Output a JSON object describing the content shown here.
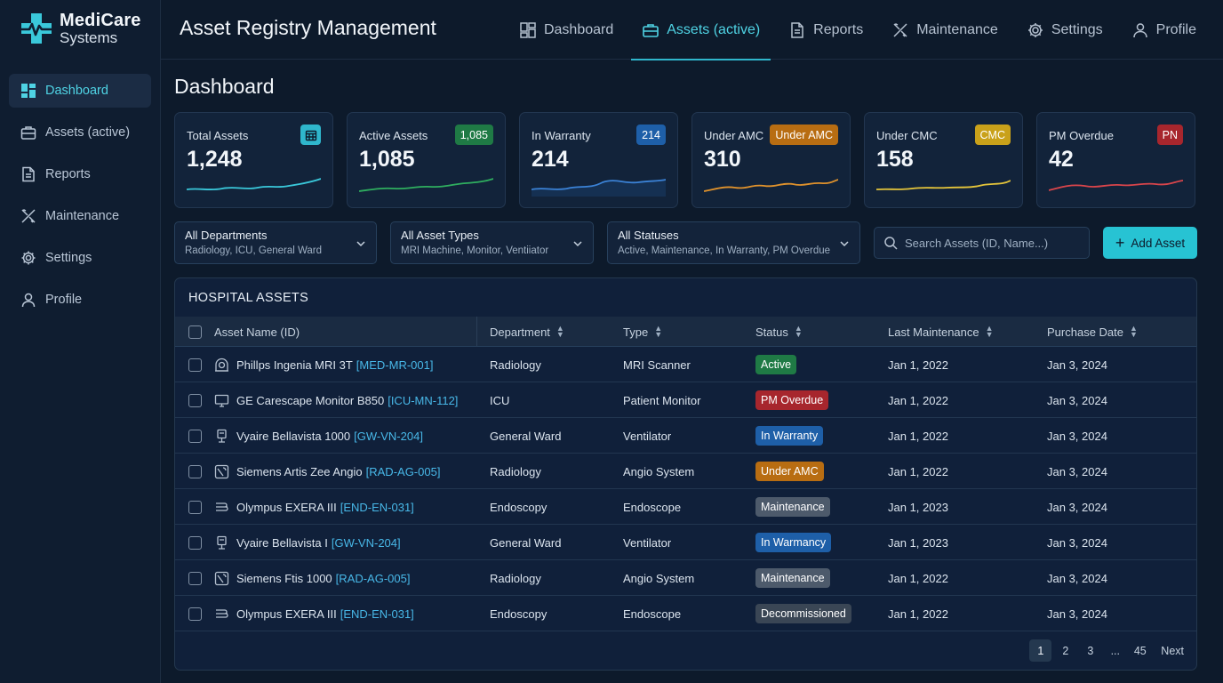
{
  "brand": {
    "name_line1": "MediCare",
    "name_line2": "Systems",
    "accent": "#3ac8da"
  },
  "app_title": "Asset Registry Management",
  "sidebar": {
    "items": [
      {
        "label": "Dashboard",
        "icon": "dashboard-grid-icon",
        "active": true
      },
      {
        "label": "Assets (active)",
        "icon": "briefcase-icon",
        "active": false
      },
      {
        "label": "Reports",
        "icon": "document-icon",
        "active": false
      },
      {
        "label": "Maintenance",
        "icon": "wrench-icon",
        "active": false
      },
      {
        "label": "Settings",
        "icon": "gear-icon",
        "active": false
      },
      {
        "label": "Profile",
        "icon": "user-icon",
        "active": false
      }
    ]
  },
  "topnav": {
    "tabs": [
      {
        "label": "Dashboard",
        "icon": "dashboard-grid-icon",
        "active": false
      },
      {
        "label": "Assets (active)",
        "icon": "briefcase-icon",
        "active": true
      },
      {
        "label": "Reports",
        "icon": "document-icon",
        "active": false
      },
      {
        "label": "Maintenance",
        "icon": "wrench-icon",
        "active": false
      },
      {
        "label": "Settings",
        "icon": "gear-icon",
        "active": false
      },
      {
        "label": "Profile",
        "icon": "user-icon",
        "active": false
      }
    ]
  },
  "page_title": "Dashboard",
  "cards": [
    {
      "label": "Total Assets",
      "value": "1,248",
      "badge": "",
      "badge_icon": "calendar-icon",
      "badge_color": "#2fb6cc",
      "line_color": "#3ac8da"
    },
    {
      "label": "Active Assets",
      "value": "1,085",
      "badge": "1,085",
      "badge_color": "#1f7a45",
      "line_color": "#2fae5f"
    },
    {
      "label": "In Warranty",
      "value": "214",
      "badge": "214",
      "badge_color": "#1e5fa8",
      "line_color": "#3b82d6"
    },
    {
      "label": "Under AMC",
      "value": "310",
      "badge": "Under AMC",
      "badge_color": "#b86d12",
      "line_color": "#e0922c"
    },
    {
      "label": "Under CMC",
      "value": "158",
      "badge": "CMC",
      "badge_color": "#c9a11a",
      "line_color": "#e5c53a"
    },
    {
      "label": "PM Overdue",
      "value": "42",
      "badge": "PN",
      "badge_color": "#a7262d",
      "line_color": "#d9454b"
    }
  ],
  "filters": [
    {
      "title": "All Departments",
      "options": "Radiology, ICU, General Ward"
    },
    {
      "title": "All Asset Types",
      "options": "MRI Machine, Monitor, Ventiiator"
    },
    {
      "title": "All Statuses",
      "options": "Active, Maintenance, In Warranty, PM Overdue"
    }
  ],
  "search": {
    "placeholder": "Search Assets (ID, Name...)"
  },
  "add_button": {
    "label": "Add Asset"
  },
  "table": {
    "title": "HOSPITAL ASSETS",
    "columns": [
      "Asset Name (ID)",
      "Department",
      "Type",
      "Status",
      "Last Maintenance",
      "Purchase Date"
    ],
    "rows": [
      {
        "name": "Phillps Ingenia MRI 3T",
        "id": "[MED-MR-001]",
        "icon": "mri-icon",
        "department": "Radiology",
        "type": "MRI Scanner",
        "status": "Active",
        "status_color": "#1f7a45",
        "last": "Jan 1, 2022",
        "purchase": "Jan 3, 2024"
      },
      {
        "name": "GE Carescape Monitor B850",
        "id": "[ICU-MN-112]",
        "icon": "monitor-icon",
        "department": "ICU",
        "type": "Patient Monitor",
        "status": "PM Overdue",
        "status_color": "#a7262d",
        "last": "Jan 1, 2022",
        "purchase": "Jan 3, 2024"
      },
      {
        "name": "Vyaire Bellavista 1000",
        "id": "[GW-VN-204]",
        "icon": "ventilator-icon",
        "department": "General Ward",
        "type": "Ventilator",
        "status": "In Warranty",
        "status_color": "#1e5fa8",
        "last": "Jan 1, 2022",
        "purchase": "Jan 3, 2024"
      },
      {
        "name": "Siemens Artis Zee Angio",
        "id": "[RAD-AG-005]",
        "icon": "angio-icon",
        "department": "Radiology",
        "type": "Angio System",
        "status": "Under AMC",
        "status_color": "#b86d12",
        "last": "Jan 1, 2022",
        "purchase": "Jan 3, 2024"
      },
      {
        "name": "Olympus EXERA III",
        "id": "[END-EN-031]",
        "icon": "endoscope-icon",
        "department": "Endoscopy",
        "type": "Endoscope",
        "status": "Maintenance",
        "status_color": "#4d5a6b",
        "last": "Jan 1, 2023",
        "purchase": "Jan 3, 2024"
      },
      {
        "name": "Vyaire Bellavista I",
        "id": "[GW-VN-204]",
        "icon": "ventilator-icon",
        "department": "General Ward",
        "type": "Ventilator",
        "status": "In Warmancy",
        "status_color": "#1e5fa8",
        "last": "Jan 1, 2023",
        "purchase": "Jan 3, 2024"
      },
      {
        "name": "Siemens Ftis 1000",
        "id": "[RAD-AG-005]",
        "icon": "angio-icon",
        "department": "Radiology",
        "type": "Angio System",
        "status": "Maintenance",
        "status_color": "#4d5a6b",
        "last": "Jan 1, 2022",
        "purchase": "Jan 3, 2024"
      },
      {
        "name": "Olympus EXERA III",
        "id": "[END-EN-031]",
        "icon": "endoscope-icon",
        "department": "Endoscopy",
        "type": "Endoscope",
        "status": "Decommissioned",
        "status_color": "#3a4655",
        "last": "Jan 1, 2022",
        "purchase": "Jan 3, 2024"
      }
    ]
  },
  "pagination": {
    "pages": [
      "1",
      "2",
      "3",
      "...",
      "45"
    ],
    "current": "1",
    "next_label": "Next"
  }
}
